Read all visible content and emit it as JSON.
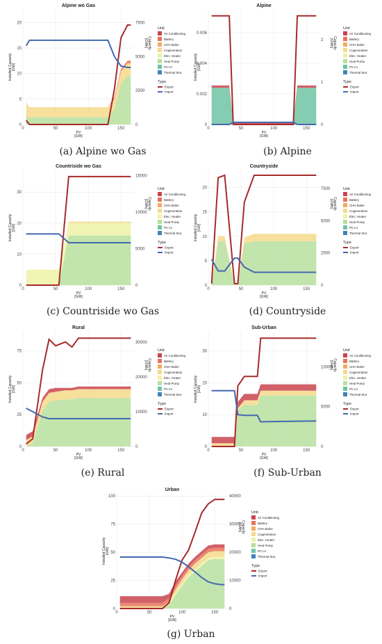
{
  "legend": {
    "unit_title": "Unit",
    "units": [
      {
        "name": "Air Conditioning",
        "color": "#c9444f"
      },
      {
        "name": "Battery",
        "color": "#e8735a"
      },
      {
        "name": "CHH Boiler",
        "color": "#f4aa63"
      },
      {
        "name": "Cogeneration",
        "color": "#f6d98b"
      },
      {
        "name": "Elec. Heater",
        "color": "#eef2a6"
      },
      {
        "name": "Heat Pump",
        "color": "#b7df9f"
      },
      {
        "name": "PV LV",
        "color": "#6fc4a4"
      },
      {
        "name": "Thermal Stor.",
        "color": "#3f84b9"
      }
    ],
    "type_title": "Type",
    "types": [
      {
        "name": "Export",
        "color": "#a52a2a"
      },
      {
        "name": "Import",
        "color": "#4468b0"
      }
    ]
  },
  "chart_data": [
    {
      "type": "area",
      "caption": "(a) Alpine wo Gas",
      "title": "Alpine wo Gas",
      "xlabel": "PV\n[GW]",
      "ylabel": "Installed Capacity\n[GW]",
      "y2label": "Capacity\n[GWh]",
      "xlim": [
        0,
        170
      ],
      "xticks": [
        0,
        50,
        100,
        150
      ],
      "ylim": [
        0,
        22.5
      ],
      "yticks": [
        0,
        5,
        10,
        15,
        20
      ],
      "y2lim": [
        0,
        8450
      ],
      "y2ticks": [
        0,
        2500,
        5000,
        7500
      ],
      "x": [
        5,
        10,
        50,
        100,
        130,
        140,
        150,
        160,
        165
      ],
      "stack": {
        "Heat Pump": [
          1.4,
          1.4,
          1.4,
          1.4,
          1.4,
          3,
          8,
          9.5,
          9.5
        ],
        "Cogeneration": [
          3,
          2,
          2,
          2,
          2,
          2,
          2.4,
          2.5,
          2.5
        ],
        "Battery": [
          0,
          0,
          0,
          0,
          0,
          0.4,
          0.5,
          0.5,
          0.5
        ]
      },
      "lines": {
        "Export": [
          0.8,
          0,
          0,
          0,
          0,
          7,
          17,
          19.5,
          19.5
        ],
        "Import": [
          5800,
          6200,
          6200,
          6200,
          6200,
          5000,
          4300,
          4200,
          4200
        ]
      }
    },
    {
      "type": "area",
      "caption": "(b) Alpine",
      "title": "Alpine",
      "xlabel": "PV\n[GW]",
      "ylabel": "Installed Capacity\n[GW]",
      "y2label": "Capacity\n[GWh]",
      "xlim": [
        0,
        170
      ],
      "xticks": [
        0,
        50,
        100,
        150
      ],
      "ylim": [
        0,
        0.0075
      ],
      "yticks": [
        0,
        0.002,
        0.004,
        0.006
      ],
      "y2lim": [
        0,
        2.7
      ],
      "y2ticks": [
        0,
        1,
        2
      ],
      "x": [
        5,
        32,
        38,
        130,
        136,
        165
      ],
      "stack": {
        "PV LV": [
          0.0024,
          0.0024,
          0,
          0,
          0.0024,
          0.0024
        ],
        "Air Conditioning": [
          0.00015,
          0.00015,
          0.00015,
          0.00015,
          0.00015,
          0.00015
        ]
      },
      "lines": {
        "Export": [
          0.0071,
          0.0071,
          0,
          0,
          0.0071,
          0.0071
        ],
        "Import": [
          0,
          0,
          0.05,
          0.05,
          0,
          0
        ]
      }
    },
    {
      "type": "area",
      "caption": "(c) Countriside wo Gas",
      "title": "Countriside wo Gas",
      "xlabel": "PV\n[GW]",
      "ylabel": "Installed Capacity\n[GW]",
      "y2label": "Capacity\n[GWh]",
      "xlim": [
        0,
        170
      ],
      "xticks": [
        0,
        50,
        100,
        150
      ],
      "ylim": [
        0,
        37
      ],
      "yticks": [
        0,
        10,
        20,
        30
      ],
      "y2lim": [
        0,
        15700
      ],
      "y2ticks": [
        0,
        5000,
        10000,
        15000
      ],
      "x": [
        5,
        55,
        70,
        165
      ],
      "stack": {
        "Heat Pump": [
          0,
          0,
          16,
          16
        ],
        "Elec. Heater": [
          5,
          5,
          4,
          4
        ],
        "Cogeneration": [
          0,
          0,
          0.5,
          0.5
        ]
      },
      "lines": {
        "Export": [
          0,
          0,
          35,
          35
        ],
        "Import": [
          7000,
          7000,
          5800,
          5800
        ]
      }
    },
    {
      "type": "area",
      "caption": "(d) Countryside",
      "title": "Countryside",
      "xlabel": "PV\n[GW]",
      "ylabel": "Installed Capacity\n[GW]",
      "y2label": "Capacity\n[GWh]",
      "xlim": [
        0,
        170
      ],
      "xticks": [
        0,
        50,
        100,
        150
      ],
      "ylim": [
        0,
        23.5
      ],
      "yticks": [
        0,
        5,
        10,
        15,
        20
      ],
      "y2lim": [
        0,
        8900
      ],
      "y2ticks": [
        0,
        2500,
        5000,
        7500
      ],
      "x": [
        5,
        15,
        25,
        40,
        45,
        55,
        70,
        165
      ],
      "stack": {
        "Heat Pump": [
          0,
          9,
          9,
          0,
          0,
          8.5,
          9,
          9
        ],
        "Cogeneration": [
          0.3,
          1,
          1,
          0.3,
          0.3,
          1.2,
          1.5,
          1.5
        ]
      },
      "lines": {
        "Export": [
          0.3,
          22,
          22.5,
          0.3,
          0.3,
          17,
          22.5,
          22.5
        ],
        "Import": [
          2000,
          1100,
          1100,
          2100,
          2100,
          1400,
          1000,
          1000
        ]
      }
    },
    {
      "type": "area",
      "caption": "(e) Rural",
      "title": "Rural",
      "xlabel": "PV\n[GW]",
      "ylabel": "Installed Capacity\n[GW]",
      "y2label": "Capacity\n[GWh]",
      "xlim": [
        0,
        170
      ],
      "xticks": [
        0,
        50,
        100,
        150
      ],
      "ylim": [
        0,
        90
      ],
      "yticks": [
        0,
        25,
        50,
        75
      ],
      "y2lim": [
        0,
        33000
      ],
      "y2ticks": [
        0,
        10000,
        20000,
        30000
      ],
      "x": [
        5,
        15,
        30,
        40,
        50,
        65,
        75,
        85,
        165
      ],
      "stack": {
        "Heat Pump": [
          0,
          3,
          28,
          35,
          36,
          37,
          37,
          38,
          38
        ],
        "Cogeneration": [
          5,
          5,
          7,
          7,
          7,
          7,
          7,
          7,
          7
        ],
        "Air Conditioning": [
          4,
          4,
          3,
          3,
          3,
          2,
          2,
          2,
          2
        ]
      },
      "lines": {
        "Export": [
          2,
          6,
          60,
          84,
          79,
          82,
          78,
          85,
          85
        ],
        "Import": [
          11000,
          10000,
          8500,
          8000,
          8000,
          8000,
          8000,
          8000,
          8000
        ]
      }
    },
    {
      "type": "area",
      "caption": "(f) Sub-Urban",
      "title": "Sub-Urban",
      "xlabel": "PV\n[GW]",
      "ylabel": "Installed Capacity\n[GW]",
      "y2label": "Capacity\n[GWh]",
      "xlim": [
        0,
        170
      ],
      "xticks": [
        0,
        50,
        100,
        150
      ],
      "ylim": [
        0,
        36
      ],
      "yticks": [
        0,
        10,
        20,
        30
      ],
      "y2lim": [
        0,
        14400
      ],
      "y2ticks": [
        0,
        5000,
        10000
      ],
      "x": [
        5,
        40,
        45,
        55,
        75,
        80,
        165
      ],
      "stack": {
        "Heat Pump": [
          0,
          0,
          11,
          13,
          13,
          16,
          16
        ],
        "Cogeneration": [
          1,
          1,
          1,
          1.5,
          1.5,
          1.5,
          1.5
        ],
        "Air Conditioning": [
          2,
          2,
          2,
          2,
          2,
          2,
          2
        ]
      },
      "lines": {
        "Export": [
          0,
          0,
          19,
          22,
          22,
          34,
          34
        ],
        "Import": [
          7000,
          7000,
          4000,
          3900,
          3900,
          3100,
          3200
        ]
      }
    },
    {
      "type": "area",
      "caption": "(g) Urban",
      "title": "Urban",
      "xlabel": "PV\n[GW]",
      "ylabel": "Installed Capacity\n[GW]",
      "y2label": "Capacity\n[GWh]",
      "xlim": [
        0,
        170
      ],
      "xticks": [
        0,
        50,
        100,
        150
      ],
      "ylim": [
        0,
        102
      ],
      "yticks": [
        0,
        25,
        50,
        75,
        100
      ],
      "y2lim": [
        0,
        40800
      ],
      "y2ticks": [
        0,
        10000,
        20000,
        30000,
        40000
      ],
      "x": [
        5,
        70,
        80,
        90,
        100,
        110,
        120,
        130,
        140,
        150,
        160,
        165
      ],
      "stack": {
        "Heat Pump": [
          0,
          0,
          3,
          12,
          20,
          28,
          33,
          38,
          43,
          44,
          44,
          44
        ],
        "Cogeneration": [
          2,
          2,
          2,
          3,
          4,
          4,
          5,
          5,
          5,
          5,
          5,
          5
        ],
        "Elec. Heater": [
          0,
          0,
          1,
          2,
          2,
          2,
          2,
          2,
          2,
          2,
          2,
          2
        ],
        "Battery": [
          3,
          3,
          3,
          3,
          3,
          3,
          3,
          3,
          3,
          3,
          3,
          3
        ],
        "Air Conditioning": [
          6,
          6,
          4,
          4,
          3,
          3,
          3,
          3,
          3,
          3,
          3,
          3
        ]
      },
      "lines": {
        "Export": [
          0,
          0,
          5,
          25,
          43,
          52,
          68,
          85,
          93,
          97,
          97,
          97
        ],
        "Import": [
          18300,
          18300,
          18000,
          17500,
          16500,
          14800,
          13000,
          11000,
          9500,
          8800,
          8500,
          8500
        ]
      }
    }
  ]
}
